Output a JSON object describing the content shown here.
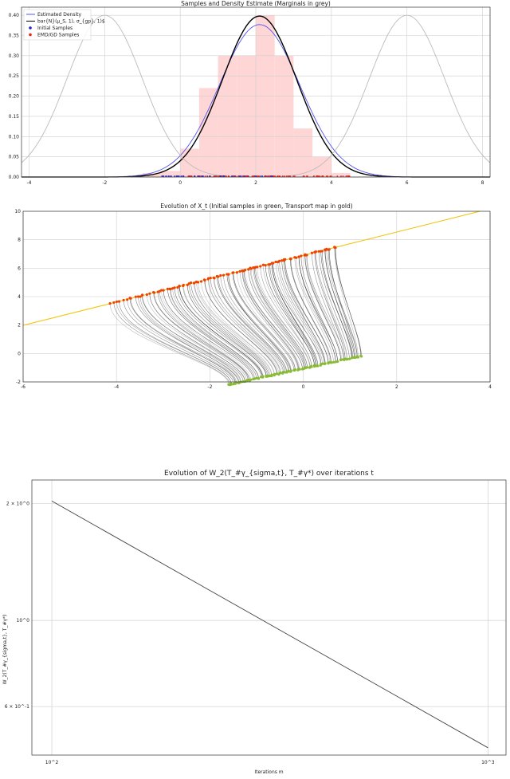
{
  "chart_data": [
    {
      "type": "line",
      "title": "Samples and Density Estimate (Marginals in grey)",
      "xlim": [
        -4.2,
        8.2
      ],
      "ylim": [
        0,
        0.42
      ],
      "xticks": [
        -4,
        -2,
        0,
        2,
        4,
        6,
        8
      ],
      "xtick_labels": [
        "-4",
        "-2",
        "0",
        "2",
        "4",
        "6",
        "8"
      ],
      "yticks": [
        0.0,
        0.05,
        0.1,
        0.15,
        0.2,
        0.25,
        0.3,
        0.35,
        0.4
      ],
      "ytick_labels": [
        "0.00",
        "0.05",
        "0.10",
        "0.15",
        "0.20",
        "0.25",
        "0.30",
        "0.35",
        "0.40"
      ],
      "grid": true,
      "legend_position": "top-left",
      "legend": [
        "Estimated Density",
        "bar{N}(μ_S, 1), σ_{gp}, 1)$",
        "Initial Samples",
        "EMD/GD Samples"
      ],
      "histogram": {
        "color": "#ffd6d6",
        "bins": [
          {
            "x0": -1.0,
            "x1": -0.5,
            "y": 0.01
          },
          {
            "x0": -0.5,
            "x1": 0.0,
            "y": 0.015
          },
          {
            "x0": 0.0,
            "x1": 0.5,
            "y": 0.07
          },
          {
            "x0": 0.5,
            "x1": 1.0,
            "y": 0.22
          },
          {
            "x0": 1.0,
            "x1": 1.5,
            "y": 0.3
          },
          {
            "x0": 1.5,
            "x1": 2.0,
            "y": 0.3
          },
          {
            "x0": 2.0,
            "x1": 2.5,
            "y": 0.4
          },
          {
            "x0": 2.5,
            "x1": 3.0,
            "y": 0.3
          },
          {
            "x0": 3.0,
            "x1": 3.5,
            "y": 0.12
          },
          {
            "x0": 3.5,
            "x1": 4.0,
            "y": 0.05
          },
          {
            "x0": 4.0,
            "x1": 4.5,
            "y": 0.01
          }
        ]
      },
      "series": [
        {
          "color": "#5555ee",
          "curve": {
            "mu": 2.1,
            "sigma": 1.06,
            "peak": 0.377
          }
        },
        {
          "color": "#000000",
          "curve": {
            "mu": 2.1,
            "sigma": 0.98,
            "peak": 0.398
          }
        },
        {
          "color": "#bbbbbb",
          "curve": {
            "mu": -2,
            "sigma": 1,
            "peak": 0.4
          }
        },
        {
          "color": "#bbbbbb",
          "curve": {
            "mu": 6,
            "sigma": 1,
            "peak": 0.4
          }
        }
      ],
      "samples": [
        {
          "color": "#2222cc",
          "range": [
            -0.5,
            2.5
          ]
        },
        {
          "color": "#ee2222",
          "range": [
            0.2,
            4.5
          ]
        }
      ]
    },
    {
      "type": "line",
      "title": "Evolution of X_t (Initial samples in green, Transport map in gold)",
      "xlim": [
        -6,
        4
      ],
      "ylim": [
        -2,
        10
      ],
      "xticks": [
        -6,
        -4,
        -2,
        0,
        2,
        4
      ],
      "xtick_labels": [
        "-6",
        "-4",
        "-2",
        "0",
        "2",
        "4"
      ],
      "yticks": [
        -2,
        0,
        2,
        4,
        6,
        8,
        10
      ],
      "ytick_labels": [
        "-2",
        "0",
        "2",
        "4",
        "6",
        "8",
        "10"
      ],
      "grid": true,
      "transport_map": {
        "color": "#f2c200",
        "slope": 0.82,
        "intercept": 6.9
      },
      "initial_samples": {
        "color": "#88bb33",
        "x_range": [
          -1.6,
          1.25
        ],
        "slope": 0.71,
        "intercept": 0.0
      },
      "final_samples": {
        "color": "#ee4400",
        "x_range": [
          -4.15,
          0.7
        ],
        "slope": 1.0,
        "intercept": 8.0
      }
    },
    {
      "type": "line",
      "title": "Evolution of W_2(T_#γ_{sigma,t}, T_#γ*) over iterations t",
      "xlabel": "Iterations m",
      "ylabel": "W_2(T_#γ_{sigma,t}, T_#γ*)",
      "log_x": true,
      "log_y": true,
      "xlim": [
        90,
        1100
      ],
      "ylim": [
        0.45,
        2.3
      ],
      "xticks": [
        100,
        1000
      ],
      "xtick_labels": [
        "10^2",
        "10^3"
      ],
      "yticks": [
        2,
        1,
        0.6
      ],
      "ytick_labels": [
        "2 × 10^0",
        "10^0",
        "6 × 10^-1"
      ],
      "grid": true,
      "series": [
        {
          "color": "#444444",
          "x": [
            100,
            1000
          ],
          "y": [
            2.03,
            0.47
          ]
        }
      ]
    }
  ]
}
